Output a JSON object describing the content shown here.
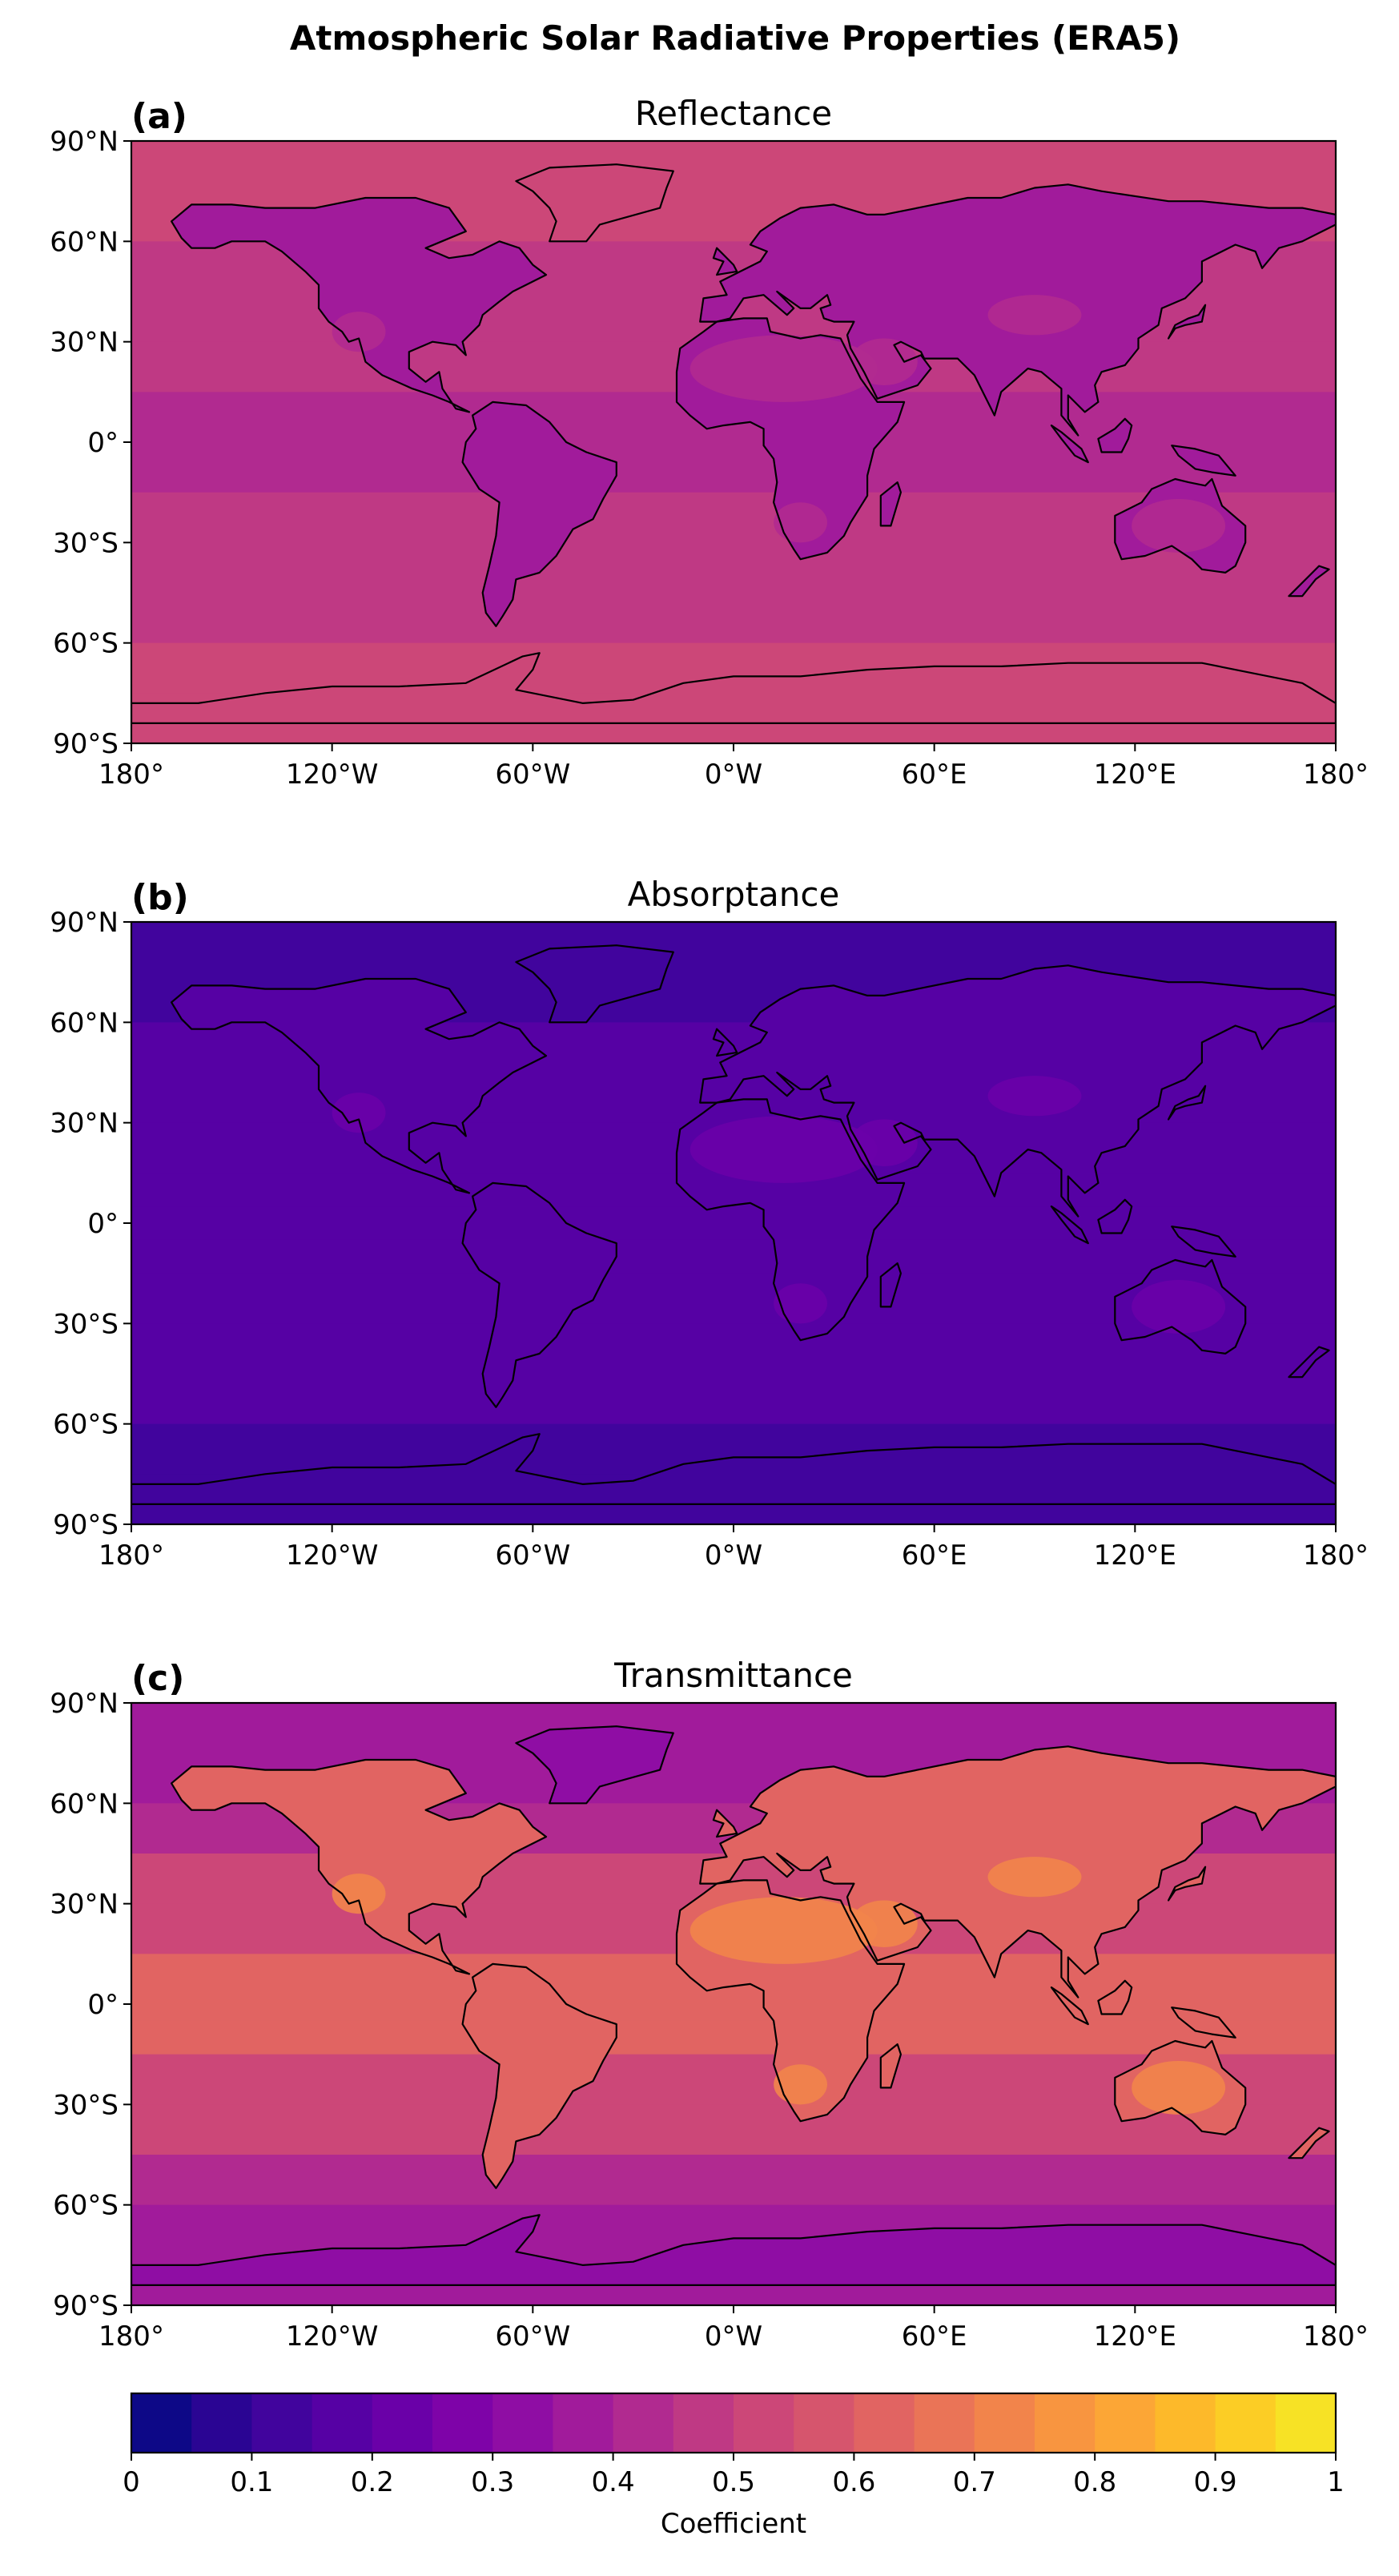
{
  "figure": {
    "title": "Atmospheric Solar Radiative Properties (ERA5)"
  },
  "panels": [
    {
      "letter": "(a)",
      "title": "Reflectance",
      "base": 0.46,
      "land_shift": -0.08,
      "equator_shift": -0.04,
      "polar_shift": 0.05,
      "desert_shift": 0.02
    },
    {
      "letter": "(b)",
      "title": "Absorptance",
      "base": 0.18,
      "land_shift": 0.02,
      "equator_shift": 0.02,
      "polar_shift": -0.05,
      "desert_shift": 0.04
    },
    {
      "letter": "(c)",
      "title": "Transmittance",
      "base": 0.52,
      "land_shift": 0.08,
      "equator_shift": 0.08,
      "polar_shift": -0.15,
      "desert_shift": 0.12
    }
  ],
  "axes": {
    "lat_ticks": [
      "90°N",
      "60°N",
      "30°N",
      "0°",
      "30°S",
      "60°S",
      "90°S"
    ],
    "lon_ticks": [
      "180°",
      "120°W",
      "60°W",
      "0°W",
      "60°E",
      "120°E",
      "180°"
    ]
  },
  "colorbar": {
    "label": "Coefficient",
    "ticks": [
      "0",
      "0.1",
      "0.2",
      "0.3",
      "0.4",
      "0.5",
      "0.6",
      "0.7",
      "0.8",
      "0.9",
      "1"
    ],
    "levels": 20,
    "colors": [
      "#0d0887",
      "#2a0593",
      "#41049d",
      "#5601a4",
      "#6a00a8",
      "#7e03a8",
      "#8f0da4",
      "#a11b9b",
      "#b12a90",
      "#bf3984",
      "#cc4778",
      "#d6556d",
      "#e16462",
      "#ea7457",
      "#f2844b",
      "#f89540",
      "#fca636",
      "#fdb92a",
      "#fccd25",
      "#f7e225",
      "#f0f921"
    ]
  },
  "chart_data": {
    "type": "heatmap",
    "title": "Atmospheric Solar Radiative Properties (ERA5)",
    "panels": [
      "Reflectance",
      "Absorptance",
      "Transmittance"
    ],
    "x_range": [
      -180,
      180
    ],
    "y_range": [
      -90,
      90
    ],
    "value_range": [
      0,
      1
    ],
    "colorbar_label": "Coefficient"
  }
}
